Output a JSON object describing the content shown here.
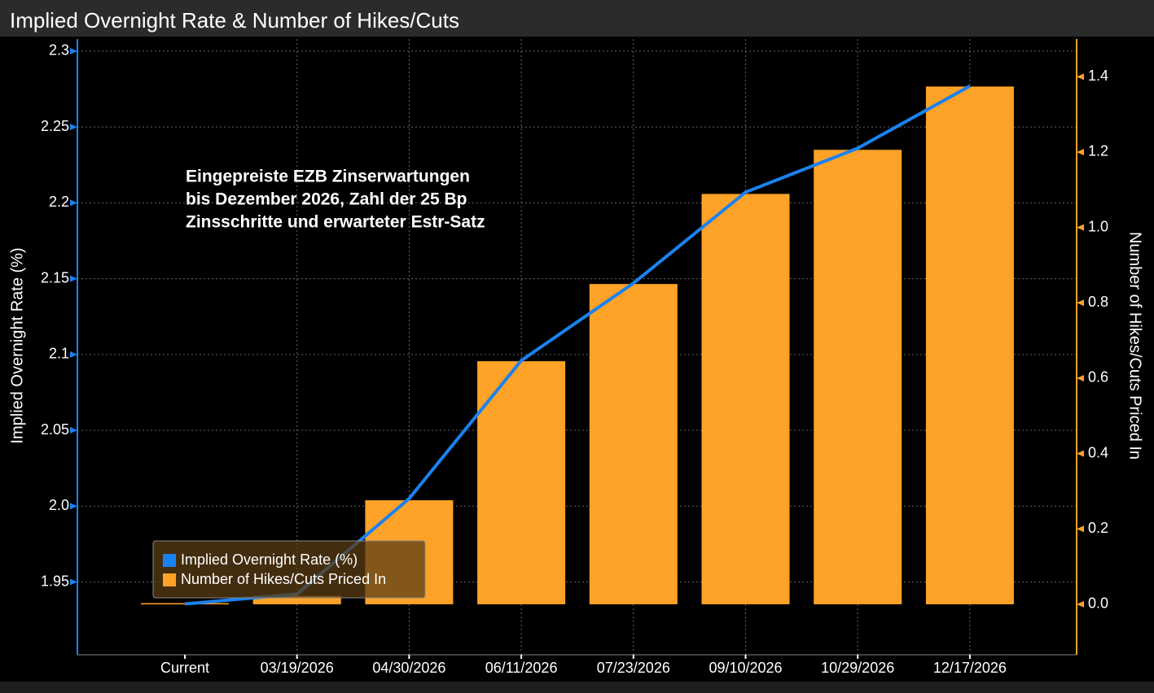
{
  "chart_data": {
    "type": "combo",
    "title": "Implied Overnight Rate & Number of Hikes/Cuts",
    "annotation": [
      "Eingepreiste EZB Zinserwartungen",
      "bis Dezember 2026, Zahl der 25 Bp",
      "Zinsschritte und erwarteter Estr-Satz"
    ],
    "y_label": "Implied Overnight Rate (%)",
    "y2_label": "Number of Hikes/Cuts Priced In",
    "categories": [
      "Current",
      "03/19/2026",
      "04/30/2026",
      "06/11/2026",
      "07/23/2026",
      "09/10/2026",
      "10/29/2026",
      "12/17/2026"
    ],
    "series": [
      {
        "name": "Implied Overnight Rate (%)",
        "type": "line",
        "axis": "y",
        "color": "#1a82f0",
        "values": [
          1.9355,
          1.942,
          2.005,
          2.096,
          2.147,
          2.207,
          2.236,
          2.277
        ]
      },
      {
        "name": "Number of Hikes/Cuts Priced In",
        "type": "bar",
        "axis": "y2",
        "color": "#ffa228",
        "values": [
          0.003,
          0.022,
          0.276,
          0.645,
          0.85,
          1.089,
          1.206,
          1.374
        ]
      }
    ],
    "ylim": [
      1.902,
      2.308
    ],
    "yticks": [
      1.95,
      {
        "value": 2,
        "label": "2.0"
      },
      2.05,
      2.1,
      2.15,
      2.2,
      2.25,
      2.3
    ],
    "y2lim": [
      -0.134,
      1.5
    ],
    "y2ticks": [
      {
        "value": 0,
        "label": "0.0"
      },
      0.2,
      0.4,
      0.6,
      0.8,
      {
        "value": 1,
        "label": "1.0"
      },
      1.2,
      1.4
    ],
    "y_axis_color": "#1a82f0",
    "y2_axis_color": "#ffa228",
    "grid": true,
    "legend": "lower left"
  }
}
